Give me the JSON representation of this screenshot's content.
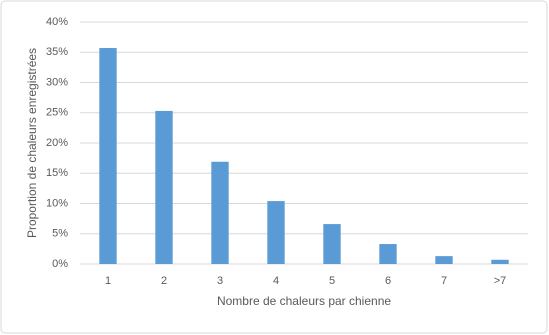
{
  "chart_data": {
    "type": "bar",
    "x_label": "Nombre de chaleurs par chienne",
    "y_label": "Proportion de chaleurs enregistrées",
    "categories": [
      "1",
      "2",
      "3",
      "4",
      "5",
      "6",
      "7",
      ">7"
    ],
    "values": [
      35.7,
      25.3,
      16.9,
      10.4,
      6.6,
      3.3,
      1.3,
      0.7
    ],
    "color": "#5b9bd5",
    "ylim": [
      0,
      40
    ],
    "yticks": [
      {
        "value": 0,
        "label": "0%"
      },
      {
        "value": 5,
        "label": "5%"
      },
      {
        "value": 10,
        "label": "10%"
      },
      {
        "value": 15,
        "label": "15%"
      },
      {
        "value": 20,
        "label": "20%"
      },
      {
        "value": 25,
        "label": "25%"
      },
      {
        "value": 30,
        "label": "30%"
      },
      {
        "value": 35,
        "label": "35%"
      },
      {
        "value": 40,
        "label": "40%"
      }
    ],
    "grid": true
  }
}
